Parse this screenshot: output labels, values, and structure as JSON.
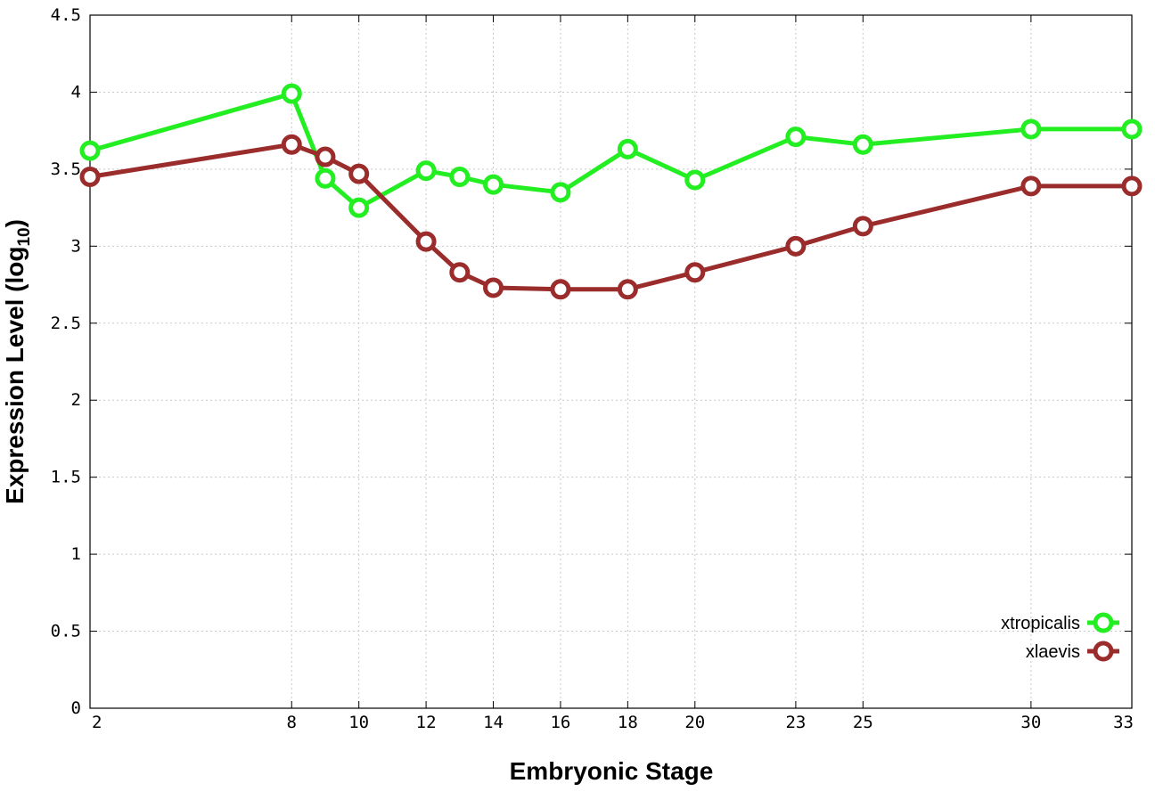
{
  "chart_data": {
    "type": "line",
    "xlabel": "Embryonic Stage",
    "ylabel_main": "Expression Level (log",
    "ylabel_sub": "10",
    "ylabel_end": ")",
    "x": [
      2,
      8,
      9,
      10,
      12,
      13,
      14,
      16,
      18,
      20,
      23,
      25,
      30,
      33
    ],
    "x_ticks": [
      2,
      8,
      10,
      12,
      14,
      16,
      18,
      20,
      23,
      25,
      30,
      33
    ],
    "xlim": [
      2,
      33
    ],
    "y_ticks": [
      0,
      0.5,
      1,
      1.5,
      2,
      2.5,
      3,
      3.5,
      4,
      4.5
    ],
    "y_tick_labels": [
      "0",
      "0.5",
      "1",
      "1.5",
      "2",
      "2.5",
      "3",
      "3.5",
      "4",
      "4.5"
    ],
    "ylim": [
      0,
      4.5
    ],
    "grid": true,
    "legend_position": "bottom-right",
    "series": [
      {
        "name": "xtropicalis",
        "color": "#22ee22",
        "values": [
          3.62,
          3.99,
          3.44,
          3.25,
          3.49,
          3.45,
          3.4,
          3.35,
          3.63,
          3.43,
          3.71,
          3.66,
          3.76,
          3.76
        ]
      },
      {
        "name": "xlaevis",
        "color": "#9b2c2c",
        "values": [
          3.45,
          3.66,
          3.58,
          3.47,
          3.03,
          2.83,
          2.73,
          2.72,
          2.72,
          2.83,
          3.0,
          3.13,
          3.39,
          3.39
        ]
      }
    ]
  }
}
